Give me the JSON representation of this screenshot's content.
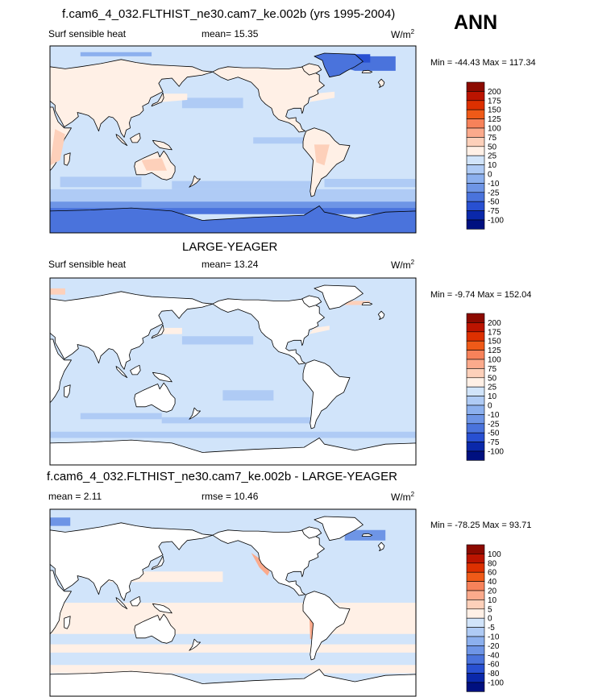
{
  "season": "ANN",
  "colors": {
    "land": "#ffffff",
    "ocean_base": "#d1e4fa",
    "coastline": "#000000",
    "frame": "#000000"
  },
  "panels": [
    {
      "title": "f.cam6_4_032.FLTHIST_ne30.cam7_ke.002b (yrs 1995-2004)",
      "left_label": "Surf sensible heat",
      "center_label": "mean=  15.35",
      "units": "W/m",
      "units_sup": "2",
      "minmax": "Min = -44.43 Max = 117.34"
    },
    {
      "title": "LARGE-YEAGER",
      "left_label": "Surf sensible heat",
      "center_label": "mean=  13.24",
      "units": "W/m",
      "units_sup": "2",
      "minmax": "Min =  -9.74 Max = 152.04"
    },
    {
      "title": "f.cam6_4_032.FLTHIST_ne30.cam7_ke.002b - LARGE-YEAGER",
      "left_label": "mean =   2.11",
      "center_label": "rmse =  10.46",
      "units": "W/m",
      "units_sup": "2",
      "minmax": "Min = -78.25 Max =  93.71"
    }
  ],
  "chart_data": [
    {
      "type": "heatmap",
      "title": "f.cam6_4_032.FLTHIST_ne30.cam7_ke.002b (yrs 1995-2004)",
      "variable": "Surf sensible heat",
      "units": "W/m2",
      "mean": 15.35,
      "min": -44.43,
      "max": 117.34,
      "colorbar": {
        "levels": [
          "200",
          "175",
          "150",
          "125",
          "100",
          "75",
          "50",
          "25",
          "10",
          "0",
          "-10",
          "-25",
          "-50",
          "-75",
          "-100"
        ],
        "colors": [
          "#8c0a00",
          "#bb1400",
          "#dd3000",
          "#ef5a18",
          "#f7825a",
          "#fbaa8c",
          "#fdd0ba",
          "#fff0e6",
          "#d1e4fa",
          "#afcbf5",
          "#8cb0ee",
          "#6e95e6",
          "#4a73dc",
          "#2850d2",
          "#0a28aa",
          "#001080"
        ]
      }
    },
    {
      "type": "heatmap",
      "title": "LARGE-YEAGER",
      "variable": "Surf sensible heat",
      "units": "W/m2",
      "mean": 13.24,
      "min": -9.74,
      "max": 152.04,
      "colorbar": {
        "levels": [
          "200",
          "175",
          "150",
          "125",
          "100",
          "75",
          "50",
          "25",
          "10",
          "0",
          "-10",
          "-25",
          "-50",
          "-75",
          "-100"
        ],
        "colors": [
          "#8c0a00",
          "#bb1400",
          "#dd3000",
          "#ef5a18",
          "#f7825a",
          "#fbaa8c",
          "#fdd0ba",
          "#fff0e6",
          "#d1e4fa",
          "#afcbf5",
          "#8cb0ee",
          "#6e95e6",
          "#4a73dc",
          "#2850d2",
          "#0a28aa",
          "#001080"
        ]
      }
    },
    {
      "type": "heatmap",
      "title": "f.cam6_4_032.FLTHIST_ne30.cam7_ke.002b - LARGE-YEAGER",
      "units": "W/m2",
      "mean": 2.11,
      "rmse": 10.46,
      "min": -78.25,
      "max": 93.71,
      "colorbar": {
        "levels": [
          "100",
          "80",
          "60",
          "40",
          "20",
          "10",
          "5",
          "0",
          "-5",
          "-10",
          "-20",
          "-40",
          "-60",
          "-80",
          "-100"
        ],
        "colors": [
          "#8c0a00",
          "#bb1400",
          "#dd3000",
          "#ef5a18",
          "#f7825a",
          "#fbaa8c",
          "#fdd0ba",
          "#fff0e6",
          "#d1e4fa",
          "#afcbf5",
          "#8cb0ee",
          "#6e95e6",
          "#4a73dc",
          "#2850d2",
          "#0a28aa",
          "#001080"
        ]
      }
    }
  ]
}
